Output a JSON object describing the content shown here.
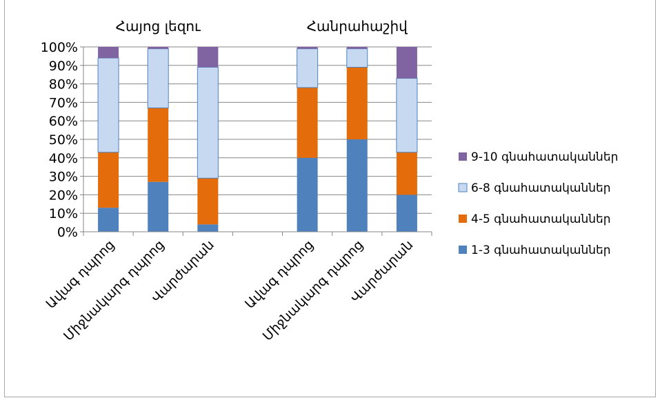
{
  "chart_data": {
    "type": "bar",
    "stacked": true,
    "percent_stacked": true,
    "groups": [
      {
        "title": "Հայոց լեզու",
        "categories": [
          "Ավագ դպրոց",
          "Միջնակարգ դպրոց",
          "Վարժարան"
        ]
      },
      {
        "title": "Հանրահաշիվ",
        "categories": [
          "Ավագ դպրոց",
          "Միջնակարգ դպրոց",
          "Վարժարան"
        ]
      }
    ],
    "categories": [
      "Ավագ դպրոց",
      "Միջնակարգ դպրոց",
      "Վարժարան",
      "",
      "Ավագ դպրոց",
      "Միջնակարգ դպրոց",
      "Վարժարան"
    ],
    "series": [
      {
        "name": "1-3 գնահատականներ",
        "color": "#4f81bd",
        "values": [
          13,
          27,
          4,
          0,
          40,
          50,
          20
        ]
      },
      {
        "name": "4-5 գնահատականներ",
        "color": "#e46c0a",
        "values": [
          30,
          40,
          25,
          0,
          38,
          39,
          23
        ]
      },
      {
        "name": "6-8 գնահատականներ",
        "color": "#c6d9f1",
        "values": [
          51,
          32,
          60,
          0,
          21,
          10,
          40
        ]
      },
      {
        "name": "9-10 գնահատականներ",
        "color": "#8064a2",
        "values": [
          6,
          1,
          11,
          0,
          1,
          1,
          17
        ]
      }
    ],
    "y_ticks": [
      "0%",
      "10%",
      "20%",
      "30%",
      "40%",
      "50%",
      "60%",
      "70%",
      "80%",
      "90%",
      "100%"
    ],
    "ylim": [
      0,
      100
    ],
    "grid": true,
    "legend_position": "right",
    "legend_order": [
      "9-10 գնահատականներ",
      "6-8 գնահատականներ",
      "4-5 գնահատականներ",
      "1-3 գնահատականներ"
    ]
  }
}
